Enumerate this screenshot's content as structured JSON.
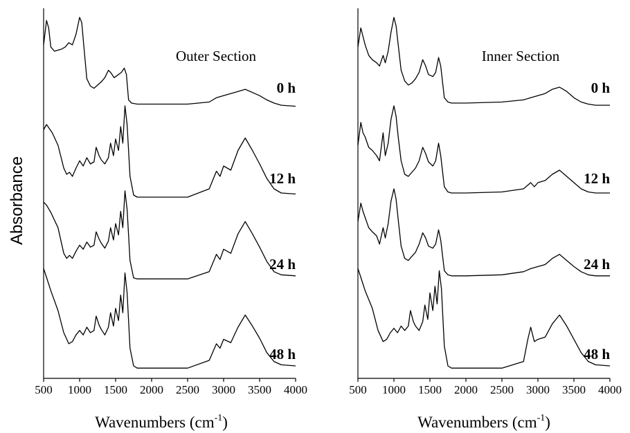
{
  "chart_data": [
    {
      "type": "line",
      "title": "Outer Section",
      "ylabel": "Absorbance",
      "xlabel_text": "Wavenumbers (cm",
      "xlabel_sup": "-1",
      "xlabel_close": ")",
      "xlim": [
        500,
        4000
      ],
      "xticks": [
        "500",
        "1000",
        "1500",
        "2000",
        "2500",
        "3000",
        "3500",
        "4000"
      ],
      "series": [
        {
          "name": "0 h",
          "x": [
            500,
            540,
            570,
            600,
            650,
            700,
            750,
            800,
            850,
            900,
            950,
            1000,
            1030,
            1060,
            1100,
            1150,
            1200,
            1250,
            1300,
            1350,
            1400,
            1430,
            1480,
            1540,
            1580,
            1620,
            1650,
            1680,
            1720,
            1800,
            2000,
            2500,
            2800,
            2900,
            3000,
            3100,
            3200,
            3300,
            3400,
            3500,
            3600,
            3700,
            3800,
            4000
          ],
          "y": [
            0.72,
            0.95,
            0.88,
            0.7,
            0.66,
            0.67,
            0.68,
            0.7,
            0.74,
            0.72,
            0.82,
            0.98,
            0.93,
            0.7,
            0.4,
            0.33,
            0.31,
            0.34,
            0.37,
            0.41,
            0.48,
            0.46,
            0.41,
            0.44,
            0.46,
            0.5,
            0.44,
            0.2,
            0.17,
            0.16,
            0.16,
            0.16,
            0.18,
            0.22,
            0.24,
            0.26,
            0.28,
            0.3,
            0.27,
            0.24,
            0.2,
            0.17,
            0.15,
            0.14
          ]
        },
        {
          "name": "12 h",
          "x": [
            500,
            540,
            570,
            620,
            700,
            780,
            820,
            860,
            900,
            950,
            1000,
            1050,
            1100,
            1150,
            1200,
            1230,
            1270,
            1300,
            1350,
            1400,
            1430,
            1470,
            1500,
            1540,
            1570,
            1600,
            1630,
            1660,
            1700,
            1750,
            1800,
            2000,
            2500,
            2800,
            2900,
            2950,
            3000,
            3100,
            3200,
            3300,
            3400,
            3500,
            3600,
            3700,
            3800,
            4000
          ],
          "y": [
            0.75,
            0.8,
            0.77,
            0.72,
            0.6,
            0.38,
            0.32,
            0.34,
            0.3,
            0.38,
            0.45,
            0.4,
            0.48,
            0.42,
            0.44,
            0.58,
            0.5,
            0.46,
            0.42,
            0.48,
            0.62,
            0.5,
            0.66,
            0.55,
            0.78,
            0.62,
            0.98,
            0.8,
            0.3,
            0.12,
            0.1,
            0.1,
            0.1,
            0.18,
            0.35,
            0.3,
            0.4,
            0.36,
            0.55,
            0.67,
            0.55,
            0.42,
            0.28,
            0.18,
            0.14,
            0.13
          ]
        },
        {
          "name": "24 h",
          "x": [
            500,
            540,
            600,
            700,
            780,
            820,
            860,
            900,
            950,
            1000,
            1050,
            1100,
            1150,
            1200,
            1230,
            1270,
            1300,
            1350,
            1400,
            1430,
            1470,
            1500,
            1540,
            1570,
            1600,
            1630,
            1660,
            1700,
            1750,
            1800,
            2000,
            2500,
            2800,
            2900,
            2950,
            3000,
            3100,
            3200,
            3300,
            3400,
            3500,
            3600,
            3700,
            3800,
            4000
          ],
          "y": [
            0.85,
            0.82,
            0.75,
            0.6,
            0.35,
            0.3,
            0.33,
            0.3,
            0.37,
            0.43,
            0.39,
            0.46,
            0.41,
            0.43,
            0.56,
            0.49,
            0.45,
            0.4,
            0.47,
            0.6,
            0.48,
            0.64,
            0.53,
            0.76,
            0.6,
            0.96,
            0.78,
            0.28,
            0.11,
            0.1,
            0.1,
            0.1,
            0.17,
            0.34,
            0.29,
            0.39,
            0.35,
            0.54,
            0.66,
            0.54,
            0.41,
            0.27,
            0.17,
            0.14,
            0.13
          ]
        },
        {
          "name": "48 h",
          "x": [
            500,
            540,
            600,
            700,
            780,
            850,
            900,
            950,
            1000,
            1050,
            1100,
            1150,
            1200,
            1230,
            1270,
            1300,
            1350,
            1400,
            1430,
            1470,
            1500,
            1540,
            1570,
            1600,
            1630,
            1660,
            1700,
            1750,
            1800,
            2000,
            2500,
            2800,
            2900,
            2950,
            3000,
            3100,
            3200,
            3300,
            3400,
            3500,
            3600,
            3700,
            3800,
            4000
          ],
          "y": [
            0.98,
            0.9,
            0.78,
            0.6,
            0.4,
            0.3,
            0.32,
            0.38,
            0.42,
            0.38,
            0.45,
            0.4,
            0.42,
            0.55,
            0.47,
            0.43,
            0.38,
            0.45,
            0.58,
            0.46,
            0.62,
            0.51,
            0.74,
            0.58,
            0.94,
            0.76,
            0.26,
            0.1,
            0.08,
            0.08,
            0.08,
            0.15,
            0.3,
            0.26,
            0.34,
            0.31,
            0.45,
            0.56,
            0.46,
            0.35,
            0.22,
            0.14,
            0.11,
            0.1
          ]
        }
      ]
    },
    {
      "type": "line",
      "title": "Inner Section",
      "xlabel_text": "Wavenumbers (cm",
      "xlabel_sup": "-1",
      "xlabel_close": ")",
      "xlim": [
        500,
        4000
      ],
      "xticks": [
        "500",
        "1000",
        "1500",
        "2000",
        "2500",
        "3000",
        "3500",
        "4000"
      ],
      "series": [
        {
          "name": "0 h",
          "x": [
            500,
            540,
            570,
            600,
            650,
            700,
            760,
            800,
            850,
            880,
            920,
            960,
            1000,
            1030,
            1060,
            1100,
            1150,
            1200,
            1250,
            1300,
            1350,
            1400,
            1440,
            1480,
            1540,
            1580,
            1620,
            1650,
            1700,
            1750,
            1800,
            2000,
            2500,
            2800,
            2900,
            3000,
            3100,
            3200,
            3300,
            3400,
            3500,
            3600,
            3700,
            3800,
            4000
          ],
          "y": [
            0.7,
            0.88,
            0.8,
            0.72,
            0.62,
            0.58,
            0.55,
            0.52,
            0.62,
            0.55,
            0.66,
            0.84,
            0.98,
            0.9,
            0.72,
            0.48,
            0.38,
            0.34,
            0.36,
            0.4,
            0.46,
            0.58,
            0.52,
            0.44,
            0.42,
            0.46,
            0.6,
            0.52,
            0.22,
            0.18,
            0.17,
            0.17,
            0.18,
            0.2,
            0.22,
            0.24,
            0.26,
            0.3,
            0.32,
            0.28,
            0.22,
            0.18,
            0.16,
            0.15,
            0.15
          ]
        },
        {
          "name": "12 h",
          "x": [
            500,
            540,
            570,
            600,
            650,
            700,
            760,
            800,
            850,
            880,
            920,
            960,
            1000,
            1030,
            1060,
            1100,
            1150,
            1200,
            1250,
            1300,
            1350,
            1400,
            1440,
            1480,
            1540,
            1580,
            1620,
            1650,
            1700,
            1750,
            1800,
            2000,
            2500,
            2800,
            2900,
            2950,
            3000,
            3100,
            3200,
            3300,
            3400,
            3500,
            3600,
            3700,
            3800,
            4000
          ],
          "y": [
            0.6,
            0.82,
            0.72,
            0.68,
            0.58,
            0.55,
            0.5,
            0.45,
            0.72,
            0.5,
            0.62,
            0.85,
            0.98,
            0.88,
            0.68,
            0.45,
            0.32,
            0.3,
            0.34,
            0.38,
            0.45,
            0.58,
            0.52,
            0.44,
            0.4,
            0.45,
            0.62,
            0.5,
            0.2,
            0.15,
            0.14,
            0.14,
            0.15,
            0.18,
            0.24,
            0.2,
            0.24,
            0.26,
            0.32,
            0.36,
            0.3,
            0.24,
            0.18,
            0.15,
            0.14,
            0.14
          ]
        },
        {
          "name": "24 h",
          "x": [
            500,
            540,
            570,
            600,
            650,
            700,
            760,
            800,
            850,
            880,
            920,
            960,
            1000,
            1030,
            1060,
            1100,
            1150,
            1200,
            1250,
            1300,
            1350,
            1400,
            1440,
            1480,
            1540,
            1580,
            1620,
            1650,
            1700,
            1750,
            1800,
            2000,
            2500,
            2800,
            2900,
            3000,
            3100,
            3200,
            3300,
            3400,
            3500,
            3600,
            3700,
            3800,
            4000
          ],
          "y": [
            0.66,
            0.84,
            0.76,
            0.7,
            0.6,
            0.56,
            0.52,
            0.44,
            0.6,
            0.5,
            0.64,
            0.86,
            0.98,
            0.88,
            0.68,
            0.42,
            0.3,
            0.28,
            0.32,
            0.36,
            0.44,
            0.55,
            0.5,
            0.42,
            0.4,
            0.44,
            0.58,
            0.48,
            0.18,
            0.14,
            0.13,
            0.13,
            0.14,
            0.17,
            0.2,
            0.22,
            0.24,
            0.3,
            0.34,
            0.28,
            0.22,
            0.17,
            0.14,
            0.13,
            0.13
          ]
        },
        {
          "name": "48 h",
          "x": [
            500,
            540,
            600,
            700,
            780,
            850,
            900,
            950,
            1000,
            1050,
            1100,
            1150,
            1200,
            1230,
            1270,
            1300,
            1350,
            1400,
            1430,
            1470,
            1500,
            1540,
            1570,
            1600,
            1630,
            1660,
            1700,
            1750,
            1800,
            2000,
            2500,
            2800,
            2860,
            2900,
            2950,
            3000,
            3100,
            3200,
            3300,
            3400,
            3500,
            3600,
            3700,
            3800,
            4000
          ],
          "y": [
            0.98,
            0.9,
            0.78,
            0.62,
            0.42,
            0.32,
            0.34,
            0.4,
            0.44,
            0.4,
            0.46,
            0.42,
            0.46,
            0.6,
            0.5,
            0.46,
            0.42,
            0.5,
            0.65,
            0.52,
            0.76,
            0.6,
            0.82,
            0.66,
            0.96,
            0.8,
            0.28,
            0.1,
            0.08,
            0.08,
            0.08,
            0.14,
            0.34,
            0.45,
            0.32,
            0.34,
            0.36,
            0.48,
            0.56,
            0.46,
            0.34,
            0.22,
            0.14,
            0.11,
            0.1
          ]
        }
      ]
    }
  ]
}
